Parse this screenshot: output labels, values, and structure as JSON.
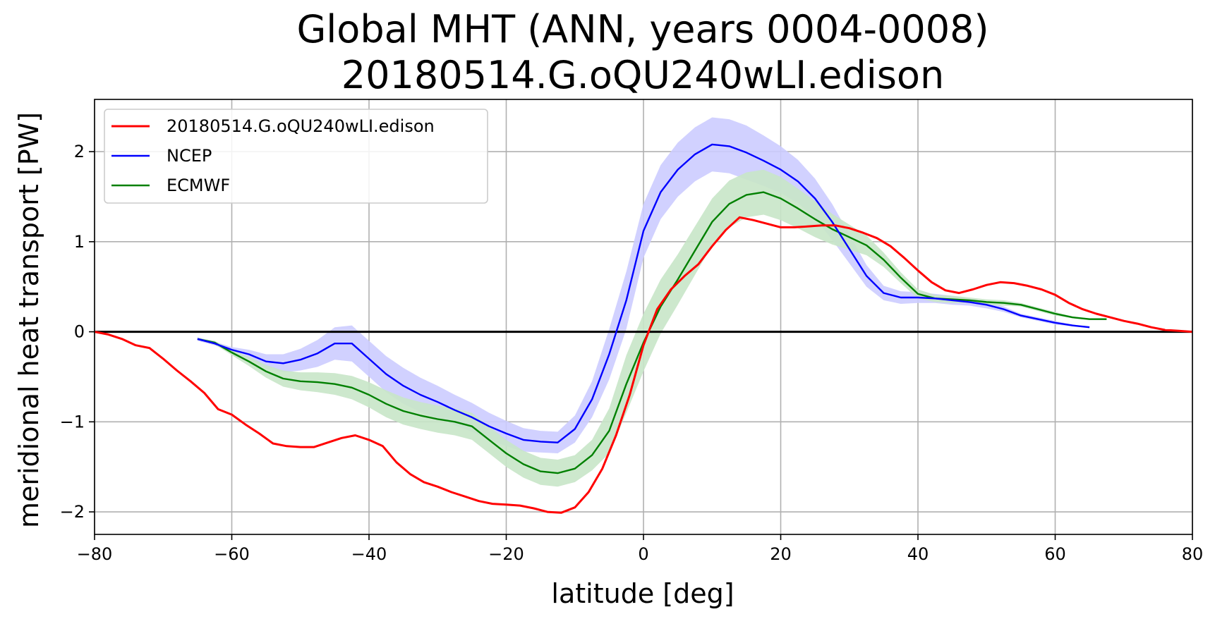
{
  "chart_data": {
    "type": "line",
    "title": "Global MHT (ANN, years 0004-0008)",
    "subtitle": "20180514.G.oQU240wLI.edison",
    "xlabel": "latitude [deg]",
    "ylabel": "meridional heat transport [PW]",
    "xlim": [
      -80,
      80
    ],
    "ylim": [
      -2.25,
      2.58
    ],
    "xticks": [
      -80,
      -60,
      -40,
      -20,
      0,
      20,
      40,
      60,
      80
    ],
    "xtick_labels": [
      "−80",
      "−60",
      "−40",
      "−20",
      "0",
      "20",
      "40",
      "60",
      "80"
    ],
    "yticks": [
      -2,
      -1,
      0,
      1,
      2
    ],
    "ytick_labels": [
      "−2",
      "−1",
      "0",
      "1",
      "2"
    ],
    "grid": true,
    "zero_line": true,
    "legend_position": "top-left",
    "series": [
      {
        "name": "20180514.G.oQU240wLI.edison",
        "color": "#ff0000",
        "x": [
          -80,
          -78,
          -76,
          -74,
          -72,
          -70,
          -68,
          -66,
          -64,
          -62,
          -60,
          -58,
          -56,
          -54,
          -52,
          -50,
          -48,
          -46,
          -44,
          -42,
          -40,
          -38,
          -36,
          -34,
          -32,
          -30,
          -28,
          -26,
          -24,
          -22,
          -20,
          -18,
          -16,
          -14,
          -12,
          -10,
          -8,
          -6,
          -4,
          -2,
          0,
          2,
          4,
          6,
          8,
          10,
          12,
          14,
          16,
          18,
          20,
          22,
          24,
          26,
          28,
          30,
          32,
          34,
          36,
          38,
          40,
          42,
          44,
          46,
          48,
          50,
          52,
          54,
          56,
          58,
          60,
          62,
          64,
          66,
          68,
          70,
          72,
          74,
          76,
          78,
          80
        ],
        "y": [
          0.0,
          -0.03,
          -0.08,
          -0.15,
          -0.18,
          -0.3,
          -0.43,
          -0.55,
          -0.68,
          -0.86,
          -0.92,
          -1.03,
          -1.13,
          -1.24,
          -1.27,
          -1.28,
          -1.28,
          -1.23,
          -1.18,
          -1.15,
          -1.2,
          -1.27,
          -1.45,
          -1.58,
          -1.67,
          -1.72,
          -1.78,
          -1.83,
          -1.88,
          -1.91,
          -1.92,
          -1.93,
          -1.96,
          -2.0,
          -2.01,
          -1.95,
          -1.78,
          -1.52,
          -1.15,
          -0.7,
          -0.15,
          0.25,
          0.47,
          0.62,
          0.75,
          0.95,
          1.13,
          1.27,
          1.24,
          1.2,
          1.16,
          1.16,
          1.17,
          1.18,
          1.18,
          1.15,
          1.1,
          1.04,
          0.95,
          0.82,
          0.68,
          0.55,
          0.46,
          0.43,
          0.47,
          0.52,
          0.55,
          0.54,
          0.51,
          0.47,
          0.41,
          0.32,
          0.25,
          0.2,
          0.16,
          0.12,
          0.09,
          0.05,
          0.02,
          0.01,
          0.0
        ]
      },
      {
        "name": "NCEP",
        "color": "#0000ff",
        "band_color": "#ccccff",
        "x": [
          -65,
          -62.5,
          -60,
          -57.5,
          -55,
          -52.5,
          -50,
          -47.5,
          -45,
          -42.5,
          -40,
          -37.5,
          -35,
          -32.5,
          -30,
          -27.5,
          -25,
          -22.5,
          -20,
          -17.5,
          -15,
          -12.5,
          -10,
          -7.5,
          -5,
          -2.5,
          0,
          2.5,
          5,
          7.5,
          10,
          12.5,
          15,
          17.5,
          20,
          22.5,
          25,
          27.5,
          30,
          32.5,
          35,
          37.5,
          40,
          42.5,
          45,
          47.5,
          50,
          52.5,
          55,
          57.5,
          60,
          62.5,
          65
        ],
        "y": [
          -0.08,
          -0.13,
          -0.2,
          -0.25,
          -0.33,
          -0.35,
          -0.31,
          -0.24,
          -0.13,
          -0.13,
          -0.3,
          -0.47,
          -0.6,
          -0.7,
          -0.78,
          -0.87,
          -0.95,
          -1.05,
          -1.13,
          -1.2,
          -1.22,
          -1.23,
          -1.08,
          -0.75,
          -0.25,
          0.35,
          1.12,
          1.55,
          1.8,
          1.97,
          2.08,
          2.06,
          1.99,
          1.9,
          1.8,
          1.67,
          1.48,
          1.22,
          0.92,
          0.62,
          0.43,
          0.38,
          0.38,
          0.37,
          0.35,
          0.33,
          0.3,
          0.25,
          0.18,
          0.14,
          0.1,
          0.07,
          0.05
        ],
        "band": [
          0.02,
          0.02,
          0.03,
          0.05,
          0.08,
          0.1,
          0.12,
          0.15,
          0.18,
          0.2,
          0.2,
          0.2,
          0.2,
          0.19,
          0.18,
          0.17,
          0.16,
          0.15,
          0.14,
          0.13,
          0.12,
          0.12,
          0.15,
          0.2,
          0.28,
          0.32,
          0.3,
          0.3,
          0.3,
          0.3,
          0.3,
          0.3,
          0.3,
          0.28,
          0.26,
          0.24,
          0.22,
          0.2,
          0.16,
          0.12,
          0.08,
          0.07,
          0.06,
          0.05,
          0.05,
          0.04,
          0.04,
          0.03,
          0.02,
          0.02,
          0.02,
          0.01,
          0.01
        ]
      },
      {
        "name": "ECMWF",
        "color": "#008000",
        "band_color": "#c8e6c8",
        "x": [
          -65,
          -62.5,
          -60,
          -57.5,
          -55,
          -52.5,
          -50,
          -47.5,
          -45,
          -42.5,
          -40,
          -37.5,
          -35,
          -32.5,
          -30,
          -27.5,
          -25,
          -22.5,
          -20,
          -17.5,
          -15,
          -12.5,
          -10,
          -7.5,
          -5,
          -2.5,
          0,
          2.5,
          5,
          7.5,
          10,
          12.5,
          15,
          17.5,
          20,
          22.5,
          25,
          27.5,
          30,
          32.5,
          35,
          37.5,
          40,
          42.5,
          45,
          47.5,
          50,
          52.5,
          55,
          57.5,
          60,
          62.5,
          65,
          67.5
        ],
        "y": [
          -0.08,
          -0.12,
          -0.23,
          -0.33,
          -0.44,
          -0.52,
          -0.55,
          -0.56,
          -0.58,
          -0.62,
          -0.7,
          -0.8,
          -0.88,
          -0.93,
          -0.97,
          -1.0,
          -1.05,
          -1.2,
          -1.35,
          -1.47,
          -1.55,
          -1.57,
          -1.52,
          -1.37,
          -1.1,
          -0.58,
          -0.12,
          0.28,
          0.58,
          0.9,
          1.22,
          1.42,
          1.52,
          1.55,
          1.48,
          1.37,
          1.25,
          1.14,
          1.05,
          0.96,
          0.8,
          0.6,
          0.42,
          0.37,
          0.36,
          0.35,
          0.33,
          0.32,
          0.3,
          0.25,
          0.2,
          0.16,
          0.14,
          0.14
        ],
        "band": [
          0.01,
          0.02,
          0.03,
          0.05,
          0.07,
          0.09,
          0.1,
          0.11,
          0.12,
          0.13,
          0.14,
          0.15,
          0.15,
          0.15,
          0.15,
          0.15,
          0.15,
          0.15,
          0.15,
          0.15,
          0.15,
          0.15,
          0.15,
          0.17,
          0.25,
          0.32,
          0.32,
          0.3,
          0.28,
          0.27,
          0.26,
          0.26,
          0.25,
          0.25,
          0.24,
          0.22,
          0.2,
          0.17,
          0.14,
          0.11,
          0.08,
          0.06,
          0.05,
          0.04,
          0.04,
          0.03,
          0.03,
          0.03,
          0.02,
          0.02,
          0.02,
          0.01,
          0.01,
          0.01
        ]
      }
    ]
  }
}
